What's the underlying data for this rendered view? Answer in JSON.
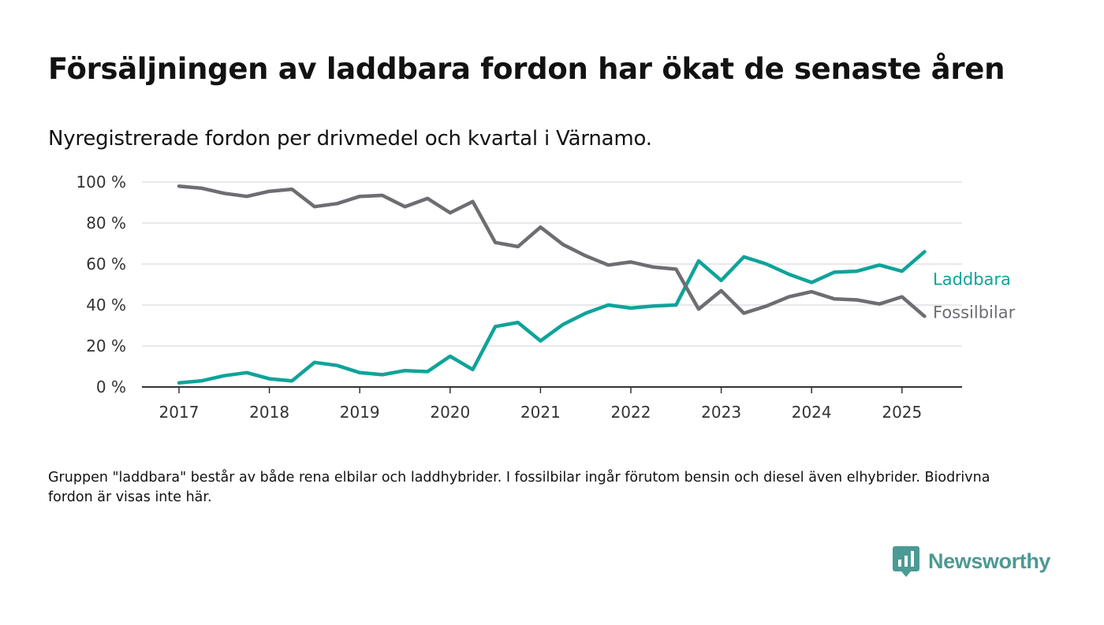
{
  "title": "Försäljningen av laddbara fordon har ökat de senaste åren",
  "subtitle": "Nyregistrerade fordon per drivmedel och kvartal i Värnamo.",
  "footnote": "Gruppen \"laddbara\" består av både rena elbilar och laddhybrider. I fossilbilar ingår förutom bensin och diesel även elhybrider. Biodrivna fordon är visas inte här.",
  "brand": {
    "name": "Newsworthy",
    "color": "#4c9a94",
    "icon": "newsworthy-chart-bubble-icon"
  },
  "chart_data": {
    "type": "line",
    "x": [
      "2017 Q1",
      "2017 Q2",
      "2017 Q3",
      "2017 Q4",
      "2018 Q1",
      "2018 Q2",
      "2018 Q3",
      "2018 Q4",
      "2019 Q1",
      "2019 Q2",
      "2019 Q3",
      "2019 Q4",
      "2020 Q1",
      "2020 Q2",
      "2020 Q3",
      "2020 Q4",
      "2021 Q1",
      "2021 Q2",
      "2021 Q3",
      "2021 Q4",
      "2022 Q1",
      "2022 Q2",
      "2022 Q3",
      "2022 Q4",
      "2023 Q1",
      "2023 Q2",
      "2023 Q3",
      "2023 Q4",
      "2024 Q1",
      "2024 Q2",
      "2024 Q3",
      "2024 Q4",
      "2025 Q1",
      "2025 Q2"
    ],
    "x_tick_labels": [
      "2017",
      "2018",
      "2019",
      "2020",
      "2021",
      "2022",
      "2023",
      "2024",
      "2025"
    ],
    "y_tick_labels": [
      "0 %",
      "20 %",
      "40 %",
      "60 %",
      "80 %",
      "100 %"
    ],
    "y_ticks": [
      0,
      20,
      40,
      60,
      80,
      100
    ],
    "ylim": [
      0,
      100
    ],
    "grid": true,
    "legend": "direct labels at line ends, right",
    "series": [
      {
        "name": "Laddbara",
        "color": "#0fa39a",
        "values": [
          2,
          3,
          5.5,
          7,
          4,
          3,
          12,
          10.5,
          7,
          6,
          8,
          7.5,
          15,
          8.5,
          29.5,
          31.5,
          22.5,
          30.5,
          36,
          40,
          38.5,
          39.5,
          40,
          61.5,
          52,
          63.5,
          60,
          55,
          51,
          56,
          56.5,
          59.5,
          56.5,
          66
        ]
      },
      {
        "name": "Fossilbilar",
        "color": "#6d6d72",
        "values": [
          98,
          97,
          94.5,
          93,
          95.5,
          96.5,
          88,
          89.5,
          93,
          93.5,
          88,
          92,
          85,
          90.5,
          70.5,
          68.5,
          78,
          69.5,
          64,
          59.5,
          61,
          58.5,
          57.5,
          38,
          47,
          36,
          39.5,
          44,
          46.5,
          43,
          42.5,
          40.5,
          44,
          34.5
        ]
      }
    ]
  }
}
